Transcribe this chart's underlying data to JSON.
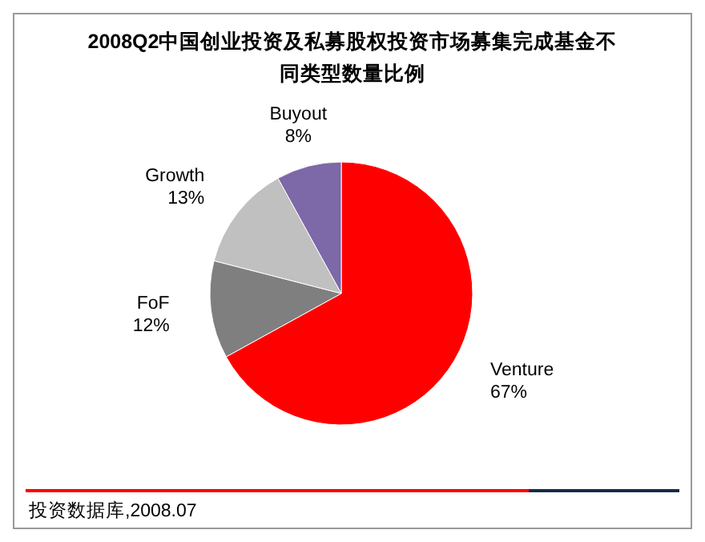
{
  "chart_data": {
    "type": "pie",
    "title": "2008Q2中国创业投资及私募股权投资市场募集完成基金不同类型数量比例",
    "categories": [
      "Venture",
      "FoF",
      "Growth",
      "Buyout"
    ],
    "values": [
      67,
      12,
      13,
      8
    ],
    "value_labels": [
      "67%",
      "12%",
      "13%",
      "8%"
    ],
    "colors": [
      "#ff0000",
      "#7f7f7f",
      "#c0c0c0",
      "#7d68a8"
    ],
    "annotations": [
      "投资数据库,2008.07"
    ]
  }
}
